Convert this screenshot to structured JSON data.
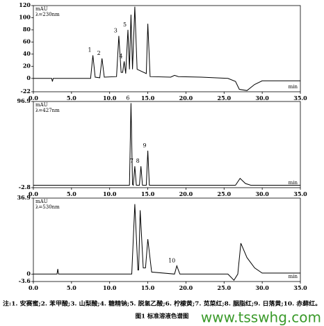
{
  "chart_data": [
    {
      "type": "line",
      "y_label": "mAU",
      "subtitle": "λ=230nm",
      "x_label": "min",
      "xlim": [
        0,
        35
      ],
      "ylim": [
        -22,
        120
      ],
      "xticks": [
        {
          "value": 0,
          "label": "0.0"
        },
        {
          "value": 5,
          "label": "5.0"
        },
        {
          "value": 10,
          "label": "10.0"
        },
        {
          "value": 15,
          "label": "15.0"
        },
        {
          "value": 20,
          "label": "20.0"
        },
        {
          "value": 25,
          "label": "25.0"
        },
        {
          "value": 30,
          "label": "30.0"
        },
        {
          "value": 35,
          "label": "35.0"
        }
      ],
      "yticks": [
        -22,
        0,
        20,
        40,
        60,
        80,
        100,
        120
      ],
      "series": [
        {
          "color": "#000000",
          "x": [
            0,
            2.4,
            2.5,
            2.6,
            7.5,
            7.8,
            8.1,
            8.7,
            9.0,
            9.3,
            10.9,
            11.2,
            11.5,
            11.7,
            11.9,
            12.1,
            12.4,
            12.6,
            12.8,
            13.0,
            13.3,
            13.6,
            14.8,
            15.0,
            15.3,
            18,
            18.5,
            19,
            22,
            25.5,
            26.5,
            27,
            28,
            29,
            30,
            35
          ],
          "values": [
            0,
            0,
            -5,
            0,
            0,
            38,
            2,
            1,
            33,
            2,
            3,
            70,
            10,
            10,
            28,
            8,
            80,
            15,
            105,
            15,
            118,
            15,
            8,
            90,
            3,
            2,
            5,
            3,
            2,
            0,
            -5,
            -18,
            -20,
            -10,
            -4,
            -4
          ]
        }
      ],
      "annotations": [
        {
          "text": "1",
          "x": 7.8,
          "y": 38
        },
        {
          "text": "2",
          "x": 9.0,
          "y": 33
        },
        {
          "text": "3",
          "x": 11.2,
          "y": 70
        },
        {
          "text": "4",
          "x": 11.9,
          "y": 28
        },
        {
          "text": "5",
          "x": 12.4,
          "y": 80
        }
      ]
    },
    {
      "type": "line",
      "y_label": "mAU",
      "subtitle": "λ=427nm",
      "x_label": "min",
      "xlim": [
        0,
        35
      ],
      "ylim": [
        -2.8,
        96.9
      ],
      "xticks": [
        {
          "value": 0,
          "label": "0.0"
        },
        {
          "value": 5,
          "label": "5.0"
        },
        {
          "value": 10,
          "label": "10.0"
        },
        {
          "value": 15,
          "label": "15.0"
        },
        {
          "value": 20,
          "label": "20.0"
        },
        {
          "value": 25,
          "label": "25.0"
        },
        {
          "value": 30,
          "label": "30.0"
        },
        {
          "value": 35,
          "label": "35.0"
        }
      ],
      "yticks": [
        -2.8,
        96.9
      ],
      "series": [
        {
          "color": "#000000",
          "x": [
            0,
            12.6,
            12.8,
            13.0,
            13.1,
            13.3,
            13.5,
            13.9,
            14.1,
            14.3,
            14.8,
            15.0,
            15.2,
            26.5,
            27.1,
            27.8,
            28.5,
            35
          ],
          "values": [
            0,
            0,
            95,
            1,
            0,
            22,
            0,
            0,
            22,
            0,
            0,
            40,
            0,
            0,
            8,
            2,
            0,
            0
          ]
        }
      ],
      "annotations": [
        {
          "text": "6",
          "x": 12.8,
          "y": 95
        },
        {
          "text": "7",
          "x": 13.3,
          "y": 22
        },
        {
          "text": "8",
          "x": 14.1,
          "y": 22
        },
        {
          "text": "9",
          "x": 15.0,
          "y": 40
        }
      ]
    },
    {
      "type": "line",
      "y_label": "mAU",
      "subtitle": "λ=530nm",
      "x_label": "min",
      "xlim": [
        0,
        35
      ],
      "ylim": [
        -3.6,
        36.9
      ],
      "xticks": [
        {
          "value": 0,
          "label": "0.0"
        },
        {
          "value": 5,
          "label": "5.0"
        },
        {
          "value": 10,
          "label": "10.0"
        },
        {
          "value": 15,
          "label": "15.0"
        },
        {
          "value": 20,
          "label": "20.0"
        },
        {
          "value": 25,
          "label": "25.0"
        },
        {
          "value": 30,
          "label": "30.0"
        },
        {
          "value": 35,
          "label": "35.0"
        }
      ],
      "yticks": [
        -3.6,
        0,
        36.9
      ],
      "series": [
        {
          "color": "#000000",
          "x": [
            0,
            3.1,
            3.2,
            3.3,
            12.9,
            13.3,
            13.7,
            13.8,
            14.0,
            14.4,
            14.7,
            15.0,
            15.5,
            18.5,
            18.8,
            19.2,
            25.5,
            26.3,
            26.8,
            27.2,
            28,
            29,
            30,
            35
          ],
          "values": [
            0,
            0,
            2.5,
            0,
            0,
            34,
            2,
            2,
            31,
            3,
            3,
            17,
            1,
            0,
            4,
            0,
            0,
            -3,
            0,
            15,
            8,
            3,
            0.5,
            0.5
          ]
        }
      ],
      "annotations": [
        {
          "text": "10",
          "x": 18.8,
          "y": 4
        }
      ]
    }
  ],
  "footnote": "注:1. 安赛蜜;2. 苯甲酸;3. 山梨酸;4. 糖精钠;5. 脱氢乙酸;6. 柠檬黄;7. 苋菜红;8. 胭脂红;9. 日落黄;10. 赤藓红。",
  "caption": "图1    标准溶液色谱图",
  "watermark": "www.tsswhg.com"
}
